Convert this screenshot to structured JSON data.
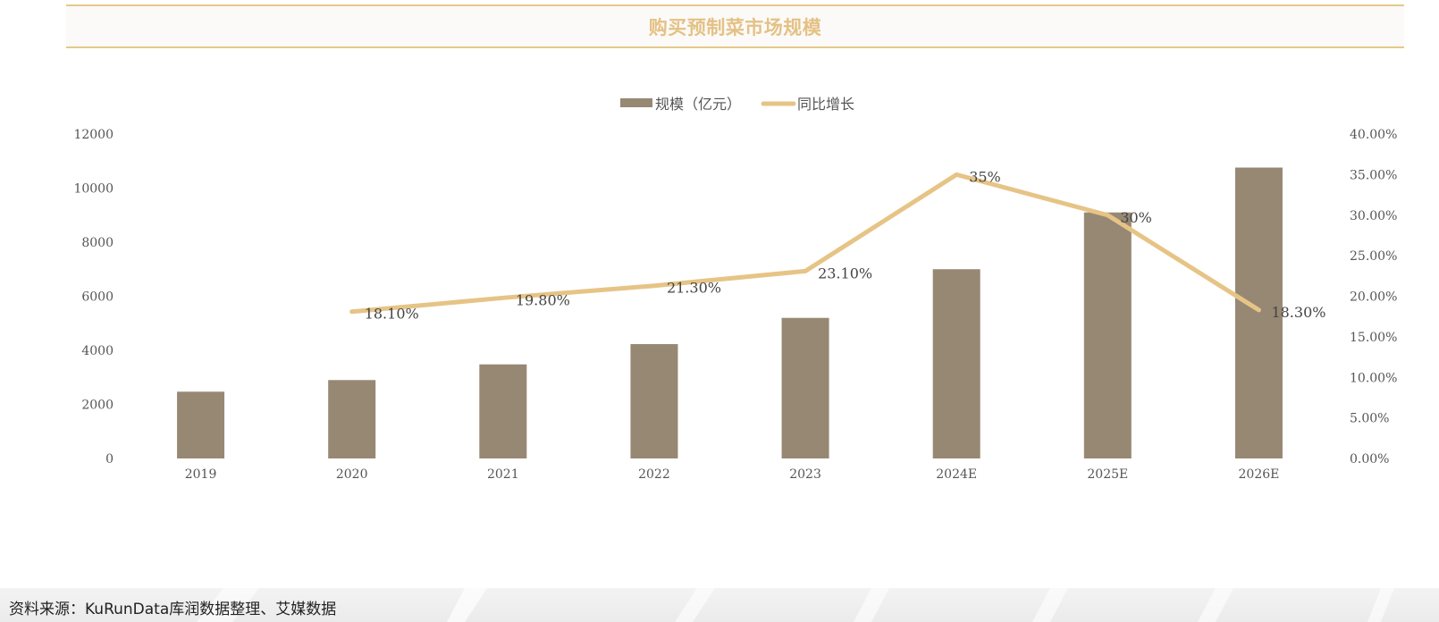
{
  "header": {
    "title": "购买预制菜市场规模"
  },
  "legend": {
    "bar_label": "规模（亿元）",
    "line_label": "同比增长"
  },
  "footer": {
    "source": "资料来源：KuRunData库润数据整理、艾媒数据"
  },
  "colors": {
    "bar": "#978874",
    "line": "#e6c486",
    "title": "#e4c184",
    "axis_text": "#555555"
  },
  "chart_data": {
    "type": "bar",
    "title": "购买预制菜市场规模",
    "categories": [
      "2019",
      "2020",
      "2021",
      "2022",
      "2023",
      "2024E",
      "2025E",
      "2026E"
    ],
    "series": [
      {
        "name": "规模（亿元）",
        "type": "bar",
        "axis": "left",
        "values": [
          2470,
          2900,
          3480,
          4230,
          5200,
          7000,
          9100,
          10760
        ]
      },
      {
        "name": "同比增长",
        "type": "line",
        "axis": "right",
        "values": [
          null,
          18.1,
          19.8,
          21.3,
          23.1,
          35,
          30,
          18.3
        ],
        "labels": [
          "",
          "18.10%",
          "19.80%",
          "21.30%",
          "23.10%",
          "35%",
          "30%",
          "18.30%"
        ]
      }
    ],
    "y_left": {
      "min": 0,
      "max": 12000,
      "ticks": [
        "0",
        "2000",
        "4000",
        "6000",
        "8000",
        "10000",
        "12000"
      ]
    },
    "y_right": {
      "min": 0,
      "max": 40,
      "ticks": [
        "0.00%",
        "5.00%",
        "10.00%",
        "15.00%",
        "20.00%",
        "25.00%",
        "30.00%",
        "35.00%",
        "40.00%"
      ]
    },
    "grid": false,
    "legend_position": "top-center"
  }
}
